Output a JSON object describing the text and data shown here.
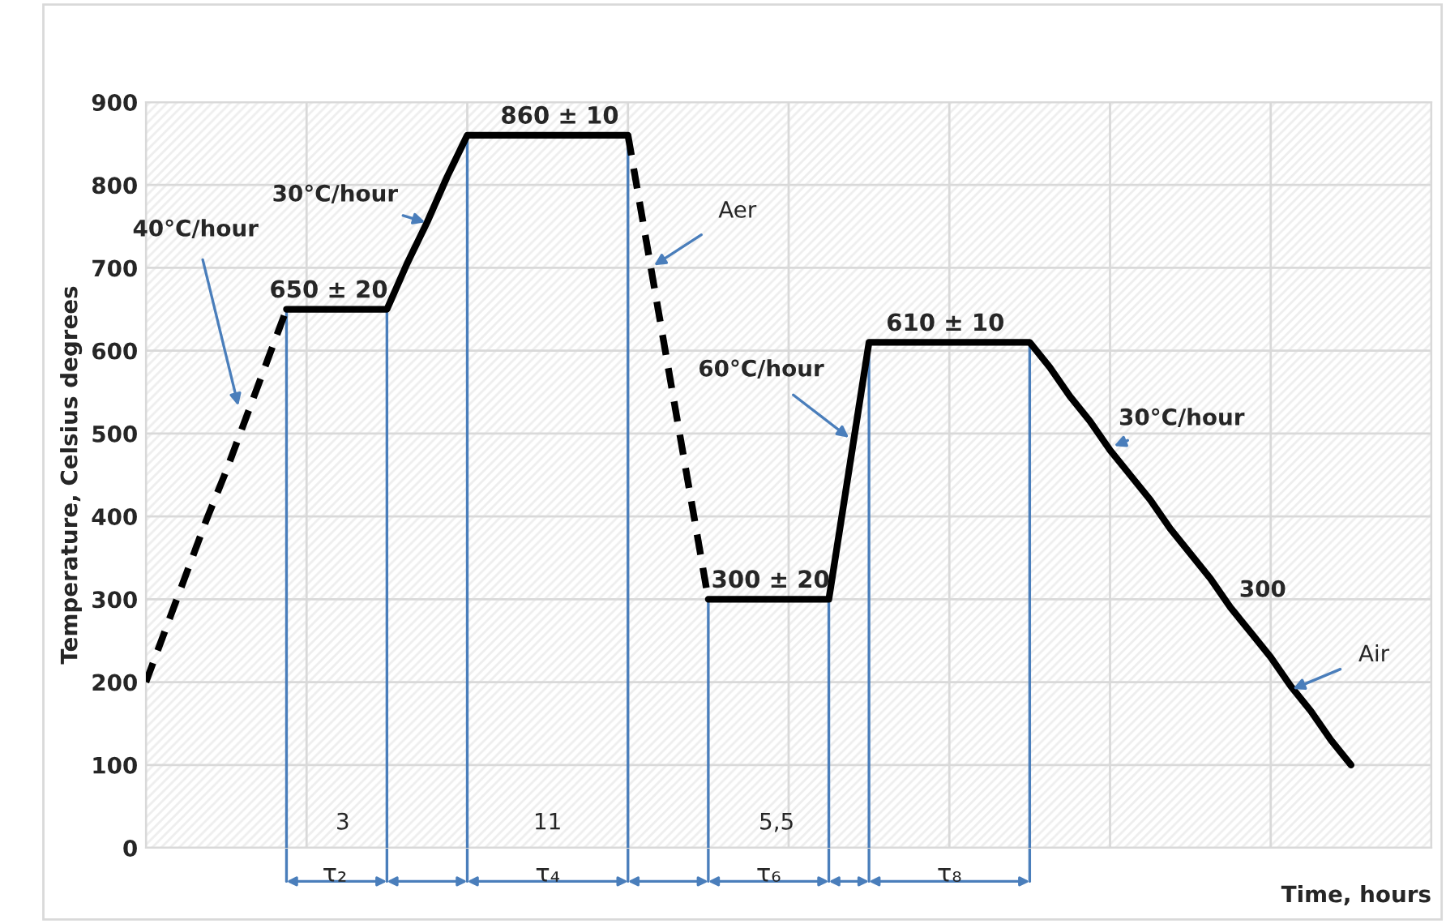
{
  "chart_data": {
    "type": "line",
    "xlabel": "Time, hours",
    "ylabel": "Temperature, Celsius degrees",
    "categories": [
      null,
      null,
      null,
      null,
      null,
      null,
      null,
      null,
      null,
      null,
      null,
      null,
      null,
      null,
      null,
      null,
      null,
      null,
      null,
      null,
      null,
      null,
      null,
      null,
      null,
      null,
      null,
      null,
      null,
      null,
      null,
      null,
      null,
      null,
      null,
      null,
      null,
      null,
      null,
      null,
      null,
      null,
      null,
      null,
      null,
      null,
      null,
      null,
      null,
      null,
      null,
      null,
      null,
      null,
      null,
      null,
      null,
      null,
      null,
      null,
      null,
      null,
      null,
      null,
      null
    ],
    "series": [
      {
        "color": "#000000",
        "line_style": "dashed",
        "values": [
          200,
          265,
          330,
          395,
          455,
          520,
          585,
          650,
          null,
          null,
          null,
          null,
          null,
          null,
          null,
          null,
          null,
          null,
          null,
          null,
          null,
          null,
          null,
          null,
          null,
          null,
          null,
          null,
          null,
          null,
          null,
          null,
          null,
          null,
          null,
          null,
          null,
          null,
          null,
          null,
          null,
          null,
          null,
          null,
          null,
          null,
          null,
          null,
          null,
          null,
          null,
          null,
          null,
          null,
          null,
          null,
          null,
          null,
          null,
          null,
          null,
          null,
          null,
          null,
          null
        ]
      },
      {
        "color": "#000000",
        "line_style": "solid",
        "values": [
          null,
          null,
          null,
          null,
          null,
          null,
          null,
          650,
          650,
          650,
          650,
          650,
          650,
          705,
          755,
          810,
          860,
          860,
          860,
          860,
          860,
          860,
          860,
          860,
          860,
          null,
          null,
          null,
          null,
          null,
          null,
          null,
          null,
          null,
          null,
          null,
          null,
          null,
          null,
          null,
          null,
          null,
          null,
          null,
          null,
          null,
          null,
          null,
          null,
          null,
          null,
          null,
          null,
          null,
          null,
          null,
          null,
          null,
          null,
          null,
          null,
          null,
          null,
          null,
          null
        ]
      },
      {
        "color": "#000000",
        "line_style": "dashed",
        "values": [
          null,
          null,
          null,
          null,
          null,
          null,
          null,
          null,
          null,
          null,
          null,
          null,
          null,
          null,
          null,
          null,
          null,
          null,
          null,
          null,
          null,
          null,
          null,
          null,
          860,
          720,
          580,
          440,
          300,
          null,
          null,
          null,
          null,
          null,
          null,
          null,
          null,
          null,
          null,
          null,
          null,
          null,
          null,
          null,
          null,
          null,
          null,
          null,
          null,
          null,
          null,
          null,
          null,
          null,
          null,
          null,
          null,
          null,
          null,
          null,
          null,
          null,
          null,
          null,
          null
        ]
      },
      {
        "color": "#000000",
        "line_style": "solid",
        "values": [
          null,
          null,
          null,
          null,
          null,
          null,
          null,
          null,
          null,
          null,
          null,
          null,
          null,
          null,
          null,
          null,
          null,
          null,
          null,
          null,
          null,
          null,
          null,
          null,
          null,
          null,
          null,
          null,
          300,
          300,
          300,
          300,
          300,
          300,
          300,
          455,
          610,
          610,
          610,
          610,
          610,
          610,
          610,
          610,
          610,
          580,
          545,
          515,
          480,
          450,
          420,
          385,
          355,
          325,
          290,
          260,
          230,
          195,
          165,
          130,
          100,
          null,
          null,
          null,
          null
        ]
      }
    ],
    "ylim": [
      0,
      900
    ],
    "yticks": [
      0,
      100,
      200,
      300,
      400,
      500,
      600,
      700,
      800,
      900
    ],
    "tick_labels": "y",
    "grid": true,
    "annotations": [
      {
        "text": "650 ± 20",
        "y": 650
      },
      {
        "text": "860 ± 10",
        "y": 860
      },
      {
        "text": "300 ± 20",
        "y": 300
      },
      {
        "text": "610 ± 10",
        "y": 610
      },
      "40°C/hour",
      "30°C/hour",
      "Aer",
      "60°C/hour",
      "30°C/hour",
      "300",
      "Air",
      "3",
      "11",
      "5,5",
      "τ₂",
      "τ₄",
      "τ₆",
      "τ₈"
    ]
  }
}
